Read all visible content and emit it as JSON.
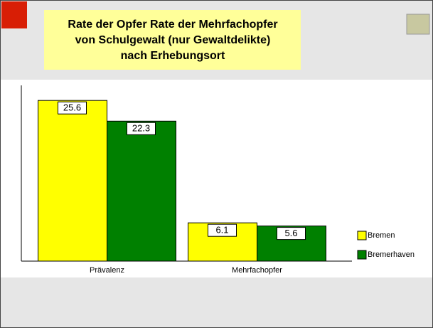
{
  "chart_data": {
    "type": "bar",
    "title": [
      "Rate der Opfer Rate der Mehrfachopfer",
      "von Schulgewalt (nur Gewaltdelikte)",
      "nach Erhebungsort"
    ],
    "categories": [
      "Prävalenz",
      "Mehrfachopfer"
    ],
    "series": [
      {
        "name": "Bremen",
        "color": "#ffff00",
        "values": [
          25.6,
          6.1
        ]
      },
      {
        "name": "Bremerhaven",
        "color": "#008000",
        "values": [
          22.3,
          5.6
        ]
      }
    ],
    "ylim": [
      0,
      28
    ]
  }
}
